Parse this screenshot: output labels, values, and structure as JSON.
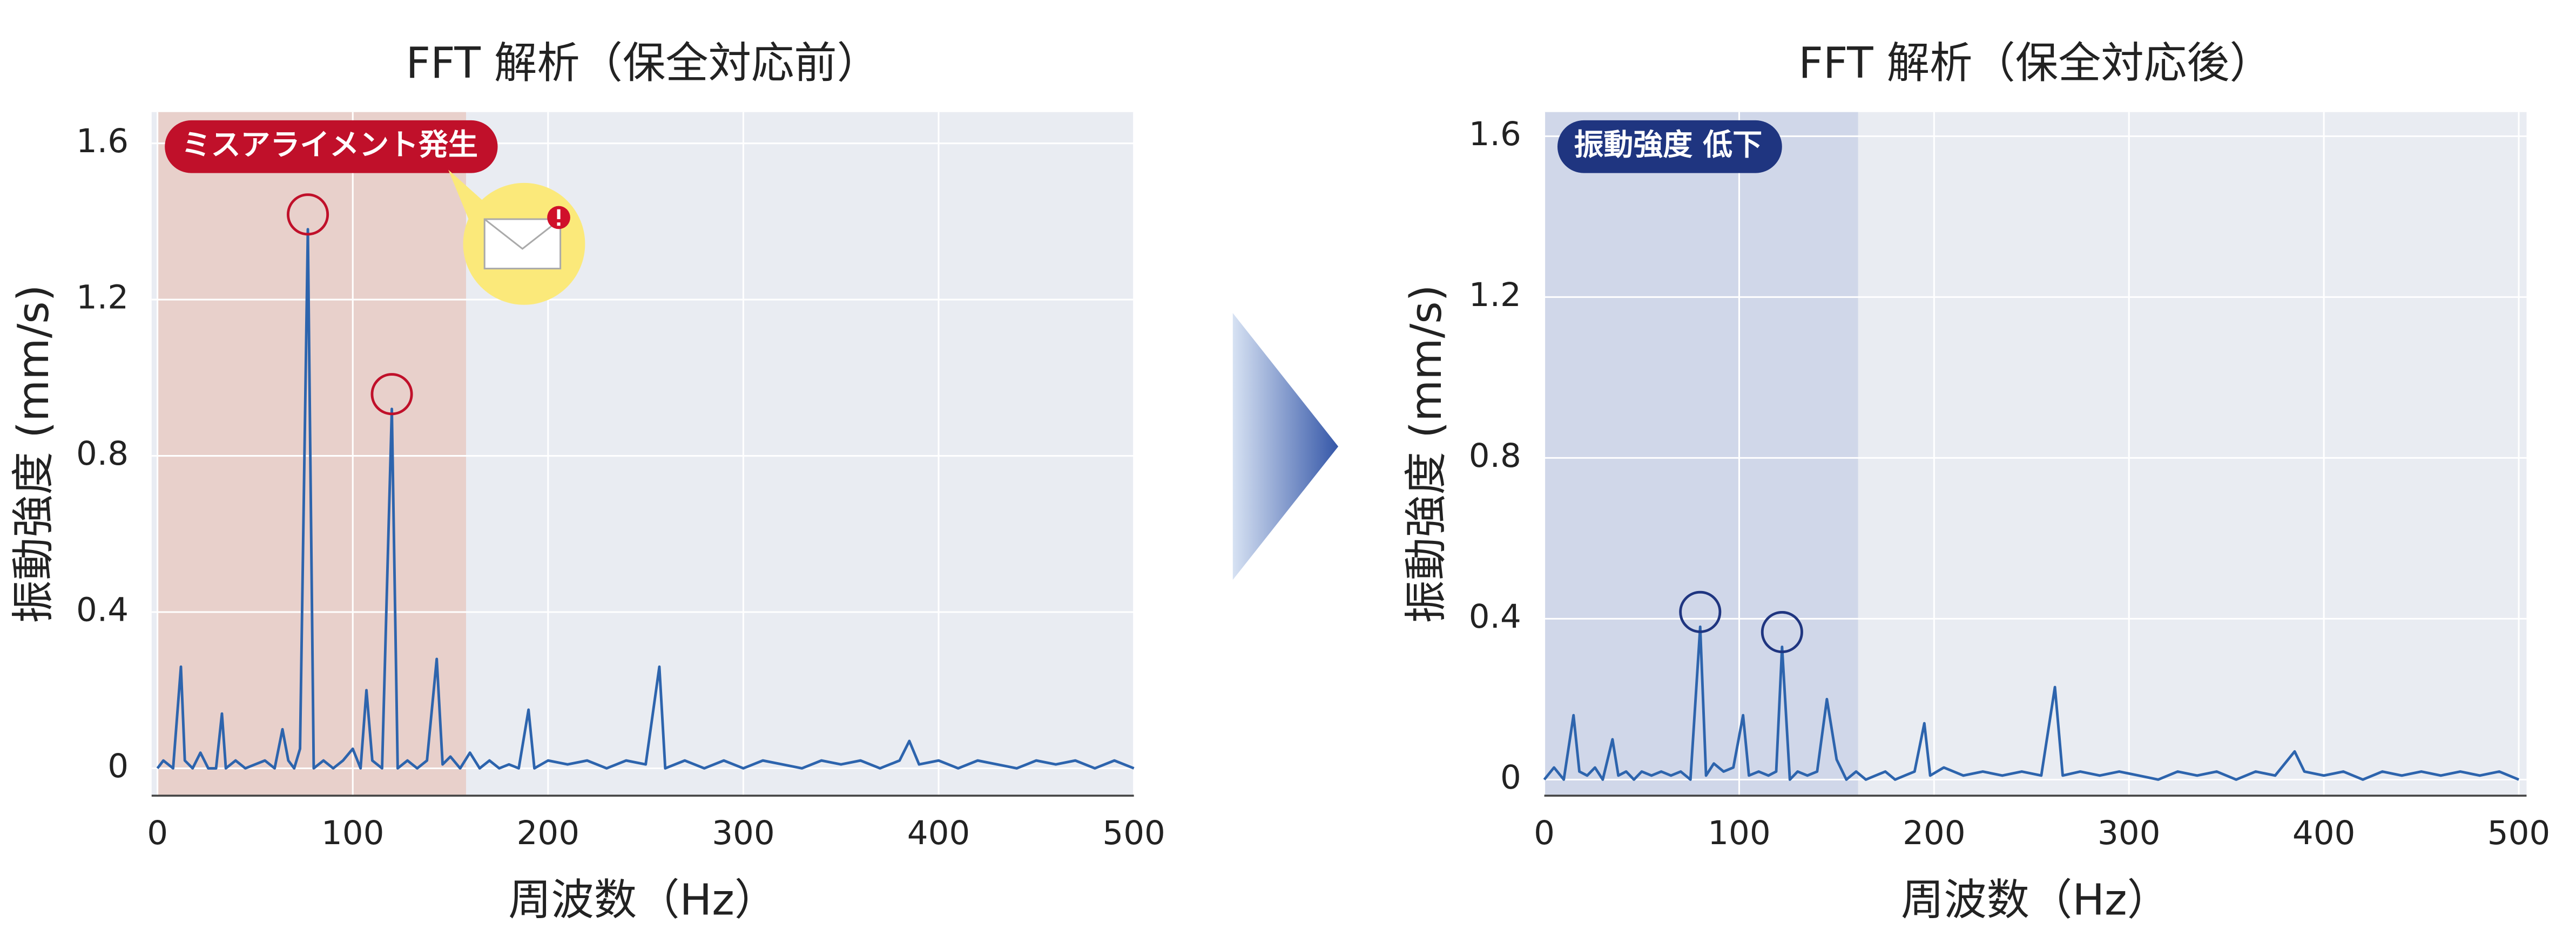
{
  "chart_data": [
    {
      "type": "line",
      "title": "FFT 解析（保全対応前）",
      "x_label": "周波数（Hz）",
      "y_label": "振動強度 (mm/s)",
      "badge": "ミスアライメント発生",
      "badge_color": "#c0102a",
      "highlight_xlim": [
        0,
        158
      ],
      "highlight_color": "#e8cbc4",
      "circled": [
        77,
        120
      ],
      "circle_color": "#c0102a",
      "grid": true,
      "xlim": [
        -3,
        500
      ],
      "xticks": [
        0,
        100,
        200,
        300,
        400,
        500
      ],
      "ylim": [
        -0.07,
        1.68
      ],
      "yticks": [
        0,
        0.4,
        0.8,
        1.2,
        1.6
      ],
      "x": [
        0,
        3,
        8,
        12,
        14,
        18,
        22,
        26,
        30,
        33,
        35,
        40,
        45,
        50,
        55,
        60,
        64,
        67,
        70,
        73,
        77,
        80,
        85,
        90,
        95,
        100,
        104,
        107,
        110,
        115,
        120,
        123,
        128,
        133,
        138,
        143,
        146,
        150,
        155,
        160,
        165,
        170,
        175,
        180,
        185,
        190,
        193,
        200,
        210,
        220,
        230,
        240,
        250,
        257,
        260,
        270,
        280,
        290,
        300,
        310,
        320,
        330,
        340,
        350,
        360,
        370,
        380,
        385,
        390,
        400,
        410,
        420,
        430,
        440,
        450,
        460,
        470,
        480,
        490,
        500
      ],
      "series": [
        {
          "color": "#2d64ad",
          "values": [
            0,
            0.02,
            0,
            0.26,
            0.02,
            0,
            0.04,
            0,
            0,
            0.14,
            0,
            0.02,
            0,
            0.01,
            0.02,
            0,
            0.1,
            0.02,
            0,
            0.05,
            1.38,
            0,
            0.02,
            0,
            0.02,
            0.05,
            0,
            0.2,
            0.02,
            0,
            0.92,
            0,
            0.02,
            0,
            0.02,
            0.28,
            0.01,
            0.03,
            0,
            0.04,
            0,
            0.02,
            0,
            0.01,
            0,
            0.15,
            0,
            0.02,
            0.01,
            0.02,
            0,
            0.02,
            0.01,
            0.26,
            0,
            0.02,
            0,
            0.02,
            0,
            0.02,
            0.01,
            0,
            0.02,
            0.01,
            0.02,
            0,
            0.02,
            0.07,
            0.01,
            0.02,
            0,
            0.02,
            0.01,
            0,
            0.02,
            0.01,
            0.02,
            0,
            0.02,
            0
          ]
        }
      ]
    },
    {
      "type": "line",
      "title": "FFT 解析（保全対応後）",
      "x_label": "周波数（Hz）",
      "y_label": "振動強度 (mm/s)",
      "badge": "振動強度 低下",
      "badge_color": "#1f3580",
      "highlight_xlim": [
        0,
        161
      ],
      "highlight_color": "#cbd4e8",
      "circled": [
        80,
        122
      ],
      "circle_color": "#1f3580",
      "grid": true,
      "xlim": [
        0,
        504
      ],
      "xticks": [
        0,
        100,
        200,
        300,
        400,
        500
      ],
      "ylim": [
        -0.04,
        1.66
      ],
      "yticks": [
        0,
        0.4,
        0.8,
        1.2,
        1.6
      ],
      "x": [
        0,
        5,
        10,
        15,
        18,
        22,
        26,
        30,
        35,
        38,
        42,
        46,
        50,
        55,
        60,
        65,
        70,
        75,
        80,
        83,
        87,
        92,
        97,
        102,
        105,
        110,
        115,
        119,
        122,
        126,
        130,
        135,
        140,
        145,
        150,
        155,
        160,
        165,
        170,
        175,
        180,
        185,
        190,
        195,
        198,
        205,
        215,
        225,
        235,
        245,
        255,
        262,
        266,
        275,
        285,
        295,
        305,
        315,
        325,
        335,
        345,
        355,
        365,
        375,
        385,
        390,
        400,
        410,
        420,
        430,
        440,
        450,
        460,
        470,
        480,
        490,
        500
      ],
      "series": [
        {
          "color": "#2d64ad",
          "values": [
            0,
            0.03,
            0,
            0.16,
            0.02,
            0.01,
            0.03,
            0,
            0.1,
            0.01,
            0.02,
            0,
            0.02,
            0.01,
            0.02,
            0.01,
            0.02,
            0,
            0.38,
            0.01,
            0.04,
            0.02,
            0.03,
            0.16,
            0.01,
            0.02,
            0.01,
            0.02,
            0.33,
            0,
            0.02,
            0.01,
            0.02,
            0.2,
            0.05,
            0,
            0.02,
            0,
            0.01,
            0.02,
            0,
            0.01,
            0.02,
            0.14,
            0.01,
            0.03,
            0.01,
            0.02,
            0.01,
            0.02,
            0.01,
            0.23,
            0.01,
            0.02,
            0.01,
            0.02,
            0.01,
            0,
            0.02,
            0.01,
            0.02,
            0,
            0.02,
            0.01,
            0.07,
            0.02,
            0.01,
            0.02,
            0,
            0.02,
            0.01,
            0.02,
            0.01,
            0.02,
            0.01,
            0.02,
            0
          ]
        }
      ]
    }
  ]
}
